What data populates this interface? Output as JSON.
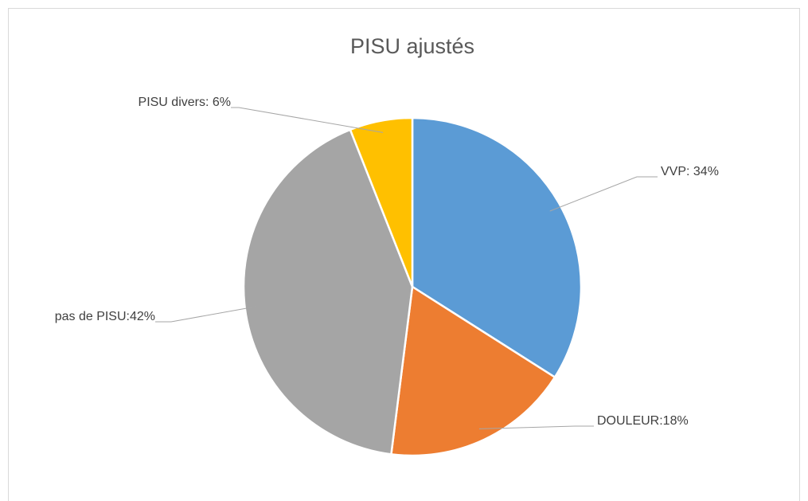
{
  "chart_data": {
    "type": "pie",
    "title": "PISU ajustés",
    "values": [
      34,
      18,
      42,
      6
    ],
    "value_labels": [
      "VVP: 34%",
      "DOULEUR:18%",
      "pas de PISU:42%",
      "PISU divers: 6%"
    ],
    "colors": [
      "#5b9bd5",
      "#ed7d31",
      "#a5a5a5",
      "#ffc000"
    ]
  }
}
